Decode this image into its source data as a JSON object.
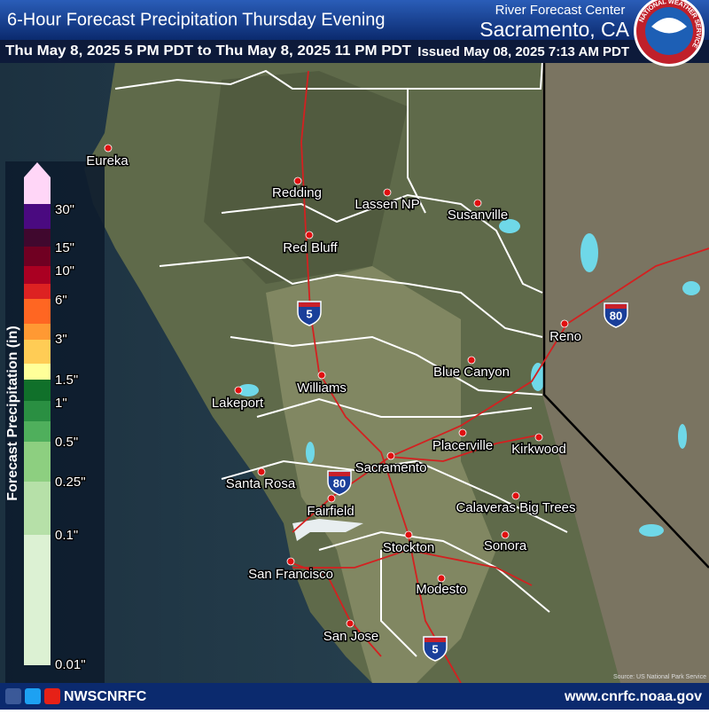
{
  "header": {
    "title": "6-Hour Forecast Precipitation Thursday Evening",
    "center_line1": "River Forecast Center",
    "center_line2": "Sacramento, CA",
    "valid_period": "Thu May 8, 2025 5 PM PDT to Thu May 8, 2025 11 PM PDT",
    "issued": "Issued May 08, 2025 7:13 AM PDT",
    "logo_text": "NATIONAL WEATHER SERVICE"
  },
  "legend": {
    "title": "Forecast Precipitation (in)",
    "colors": [
      "#dcf1d3",
      "#b6e0a8",
      "#8dcf80",
      "#4faf5c",
      "#2a8f42",
      "#10702a",
      "#ffff99",
      "#ffcc55",
      "#ff9933",
      "#ff6622",
      "#dd2222",
      "#aa0022",
      "#700022",
      "#40082e",
      "#4a0a80",
      "#ffd6f7"
    ],
    "labels": [
      "0.01\"",
      "0.1\"",
      "0.25\"",
      "0.5\"",
      "1\"",
      "1.5\"",
      "3\"",
      "6\"",
      "10\"",
      "15\"",
      "30\""
    ]
  },
  "cities": [
    "Eureka",
    "Redding",
    "Lassen NP",
    "Susanville",
    "Red Bluff",
    "Reno",
    "Blue Canyon",
    "Williams",
    "Lakeport",
    "Placerville",
    "Kirkwood",
    "Sacramento",
    "Santa Rosa",
    "Calaveras Big Trees",
    "Fairfield",
    "Stockton",
    "Sonora",
    "San Francisco",
    "Modesto",
    "San Jose"
  ],
  "interstates": [
    "5",
    "80",
    "80",
    "5"
  ],
  "source": "Source: US National Park Service",
  "footer": {
    "handle": "NWSCNRFC",
    "url": "www.cnrfc.noaa.gov"
  }
}
